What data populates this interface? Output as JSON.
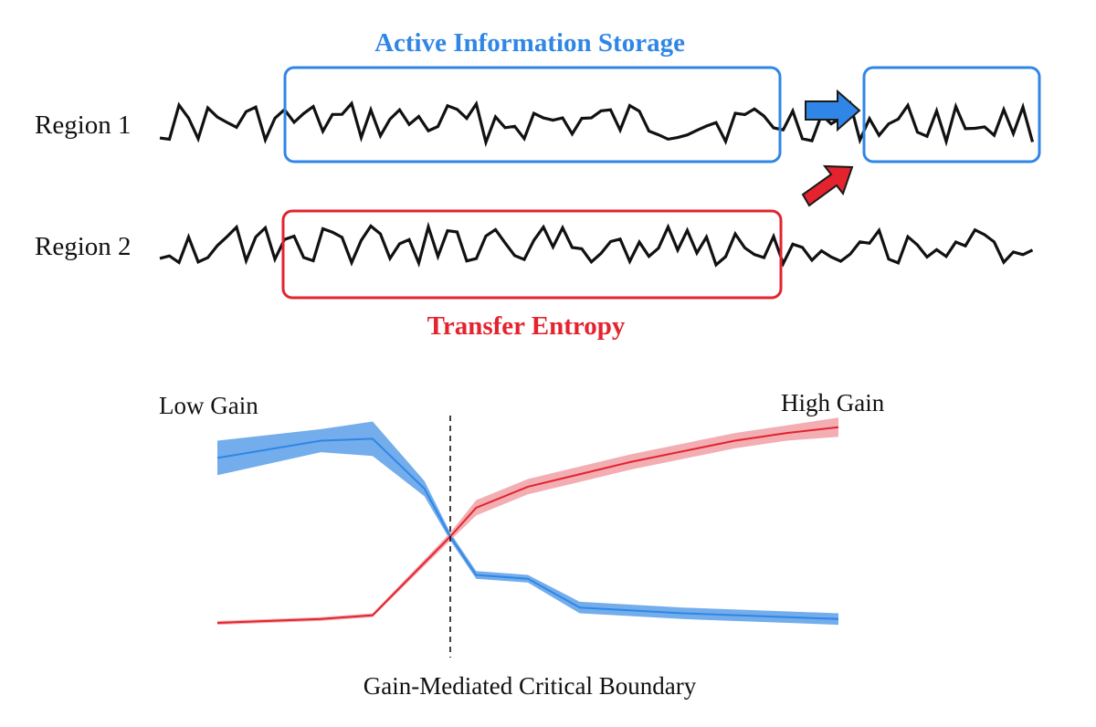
{
  "colors": {
    "ais": "#2f86e6",
    "te": "#e4232e",
    "trace": "#111111",
    "ais_band": "#5a9fe8",
    "te_band": "#f0a0a4"
  },
  "labels": {
    "region1": "Region 1",
    "region2": "Region 2",
    "ais_title": "Active Information Storage",
    "te_title": "Transfer Entropy",
    "low_gain": "Low Gain",
    "high_gain": "High Gain",
    "boundary": "Gain-Mediated Critical Boundary"
  },
  "icons": {
    "arrow_right": "blue-arrow-icon",
    "arrow_diag": "red-arrow-icon"
  },
  "chart_data": {
    "type": "line",
    "title": "",
    "xlabel": "Gain-Mediated Critical Boundary",
    "ylabel": "",
    "x": [
      0,
      2,
      3,
      4,
      5,
      6,
      8,
      10,
      12
    ],
    "xlim": [
      0,
      12
    ],
    "ylim": [
      0,
      1
    ],
    "critical_x": 4.5,
    "grid": false,
    "annotations": [
      "Low Gain",
      "High Gain"
    ],
    "series": [
      {
        "name": "Active Information Storage",
        "color": "#2f86e6",
        "x": [
          0,
          2,
          3,
          4,
          4.5,
          5,
          6,
          7,
          9,
          12
        ],
        "values": [
          0.86,
          0.95,
          0.96,
          0.7,
          0.45,
          0.25,
          0.23,
          0.08,
          0.05,
          0.02
        ],
        "band": [
          0.09,
          0.06,
          0.09,
          0.04,
          0.02,
          0.02,
          0.02,
          0.03,
          0.03,
          0.03
        ]
      },
      {
        "name": "Transfer Entropy",
        "color": "#e4232e",
        "x": [
          0,
          2,
          3,
          4.5,
          5,
          6,
          8,
          10,
          11,
          12
        ],
        "values": [
          0.0,
          0.02,
          0.04,
          0.45,
          0.6,
          0.71,
          0.84,
          0.95,
          0.99,
          1.02
        ],
        "band": [
          0.01,
          0.01,
          0.01,
          0.02,
          0.04,
          0.04,
          0.04,
          0.04,
          0.04,
          0.05
        ]
      }
    ]
  }
}
